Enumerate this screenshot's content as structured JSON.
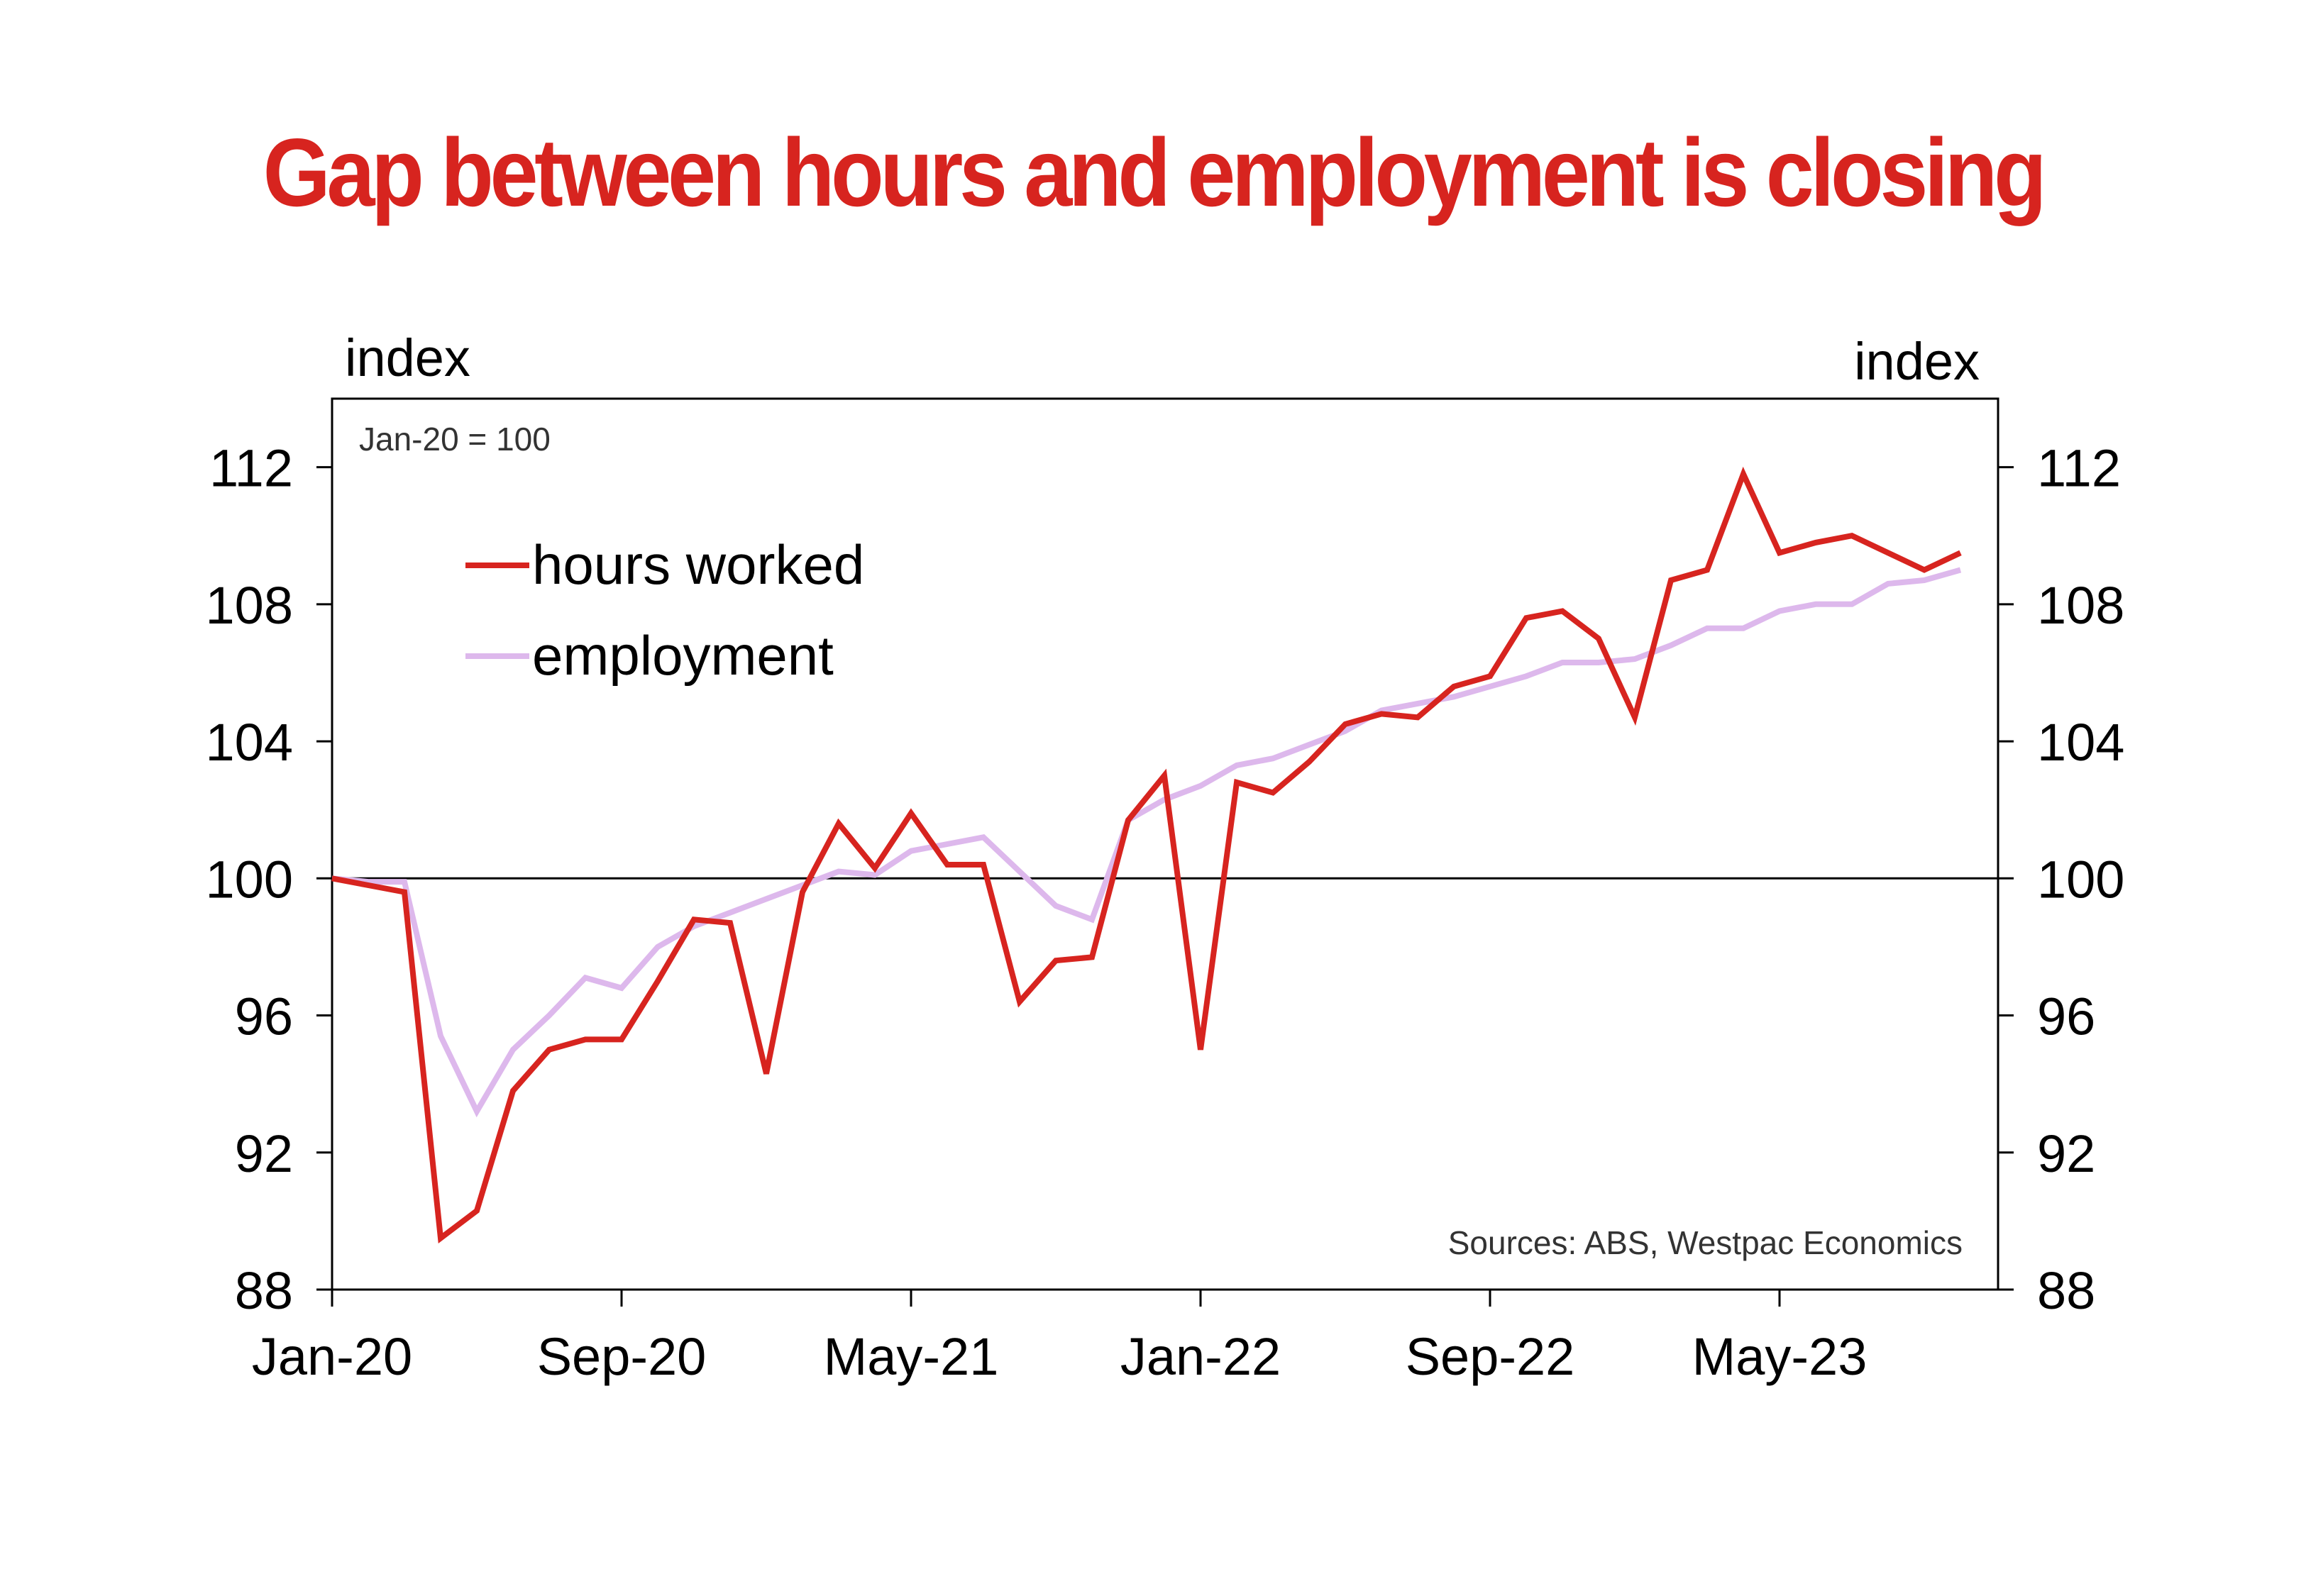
{
  "title": "Gap between hours and employment is closing",
  "chart_data": {
    "type": "line",
    "title": "Gap between hours and employment is closing",
    "x": [
      "Jan-20",
      "Feb-20",
      "Mar-20",
      "Apr-20",
      "May-20",
      "Jun-20",
      "Jul-20",
      "Aug-20",
      "Sep-20",
      "Oct-20",
      "Nov-20",
      "Dec-20",
      "Jan-21",
      "Feb-21",
      "Mar-21",
      "Apr-21",
      "May-21",
      "Jun-21",
      "Jul-21",
      "Aug-21",
      "Sep-21",
      "Oct-21",
      "Nov-21",
      "Dec-21",
      "Jan-22",
      "Feb-22",
      "Mar-22",
      "Apr-22",
      "May-22",
      "Jun-22",
      "Jul-22",
      "Aug-22",
      "Sep-22",
      "Oct-22",
      "Nov-22",
      "Dec-22",
      "Jan-23",
      "Feb-23",
      "Mar-23",
      "Apr-23",
      "May-23",
      "Jun-23",
      "Jul-23",
      "Aug-23",
      "Sep-23",
      "Oct-23",
      "Nov-23"
    ],
    "x_tick_labels": [
      "Jan-20",
      "Sep-20",
      "May-21",
      "Jan-22",
      "Sep-22",
      "May-23"
    ],
    "x_tick_indices": [
      0,
      8,
      16,
      24,
      32,
      40
    ],
    "series": [
      {
        "name": "hours worked",
        "color": "#d7241f",
        "values": [
          100.0,
          99.8,
          99.6,
          89.5,
          90.3,
          93.8,
          95.0,
          95.3,
          95.3,
          97.0,
          98.8,
          98.7,
          94.3,
          99.6,
          101.6,
          100.3,
          101.9,
          100.4,
          100.4,
          96.4,
          97.6,
          97.7,
          101.7,
          103.0,
          95.0,
          102.8,
          102.5,
          103.4,
          104.5,
          104.8,
          104.7,
          105.6,
          105.9,
          107.6,
          107.8,
          107.0,
          104.7,
          108.7,
          109.0,
          111.8,
          109.5,
          109.8,
          110.0,
          109.5,
          109.0,
          109.5,
          null
        ]
      },
      {
        "name": "employment",
        "color": "#ddb8ec",
        "values": [
          100.0,
          99.9,
          99.9,
          95.4,
          93.2,
          95.0,
          96.0,
          97.1,
          96.8,
          98.0,
          98.6,
          99.0,
          99.4,
          99.8,
          100.2,
          100.1,
          100.8,
          101.0,
          101.2,
          100.2,
          99.2,
          98.8,
          101.7,
          102.3,
          102.7,
          103.3,
          103.5,
          103.9,
          104.3,
          104.9,
          105.1,
          105.3,
          105.6,
          105.9,
          106.3,
          106.3,
          106.4,
          106.8,
          107.3,
          107.3,
          107.8,
          108.0,
          108.0,
          108.6,
          108.7,
          109.0,
          null
        ]
      }
    ],
    "y_left": {
      "label": "index",
      "ticks": [
        88,
        92,
        96,
        100,
        104,
        108,
        112
      ],
      "ylim": [
        88,
        114
      ]
    },
    "y_right": {
      "label": "index",
      "ticks": [
        88,
        92,
        96,
        100,
        104,
        108,
        112
      ],
      "ylim": [
        88,
        114
      ]
    },
    "reference_line": 100,
    "base_note": "Jan-20 = 100",
    "source": "Sources: ABS, Westpac Economics",
    "legend_position": "top-left",
    "grid": false
  }
}
